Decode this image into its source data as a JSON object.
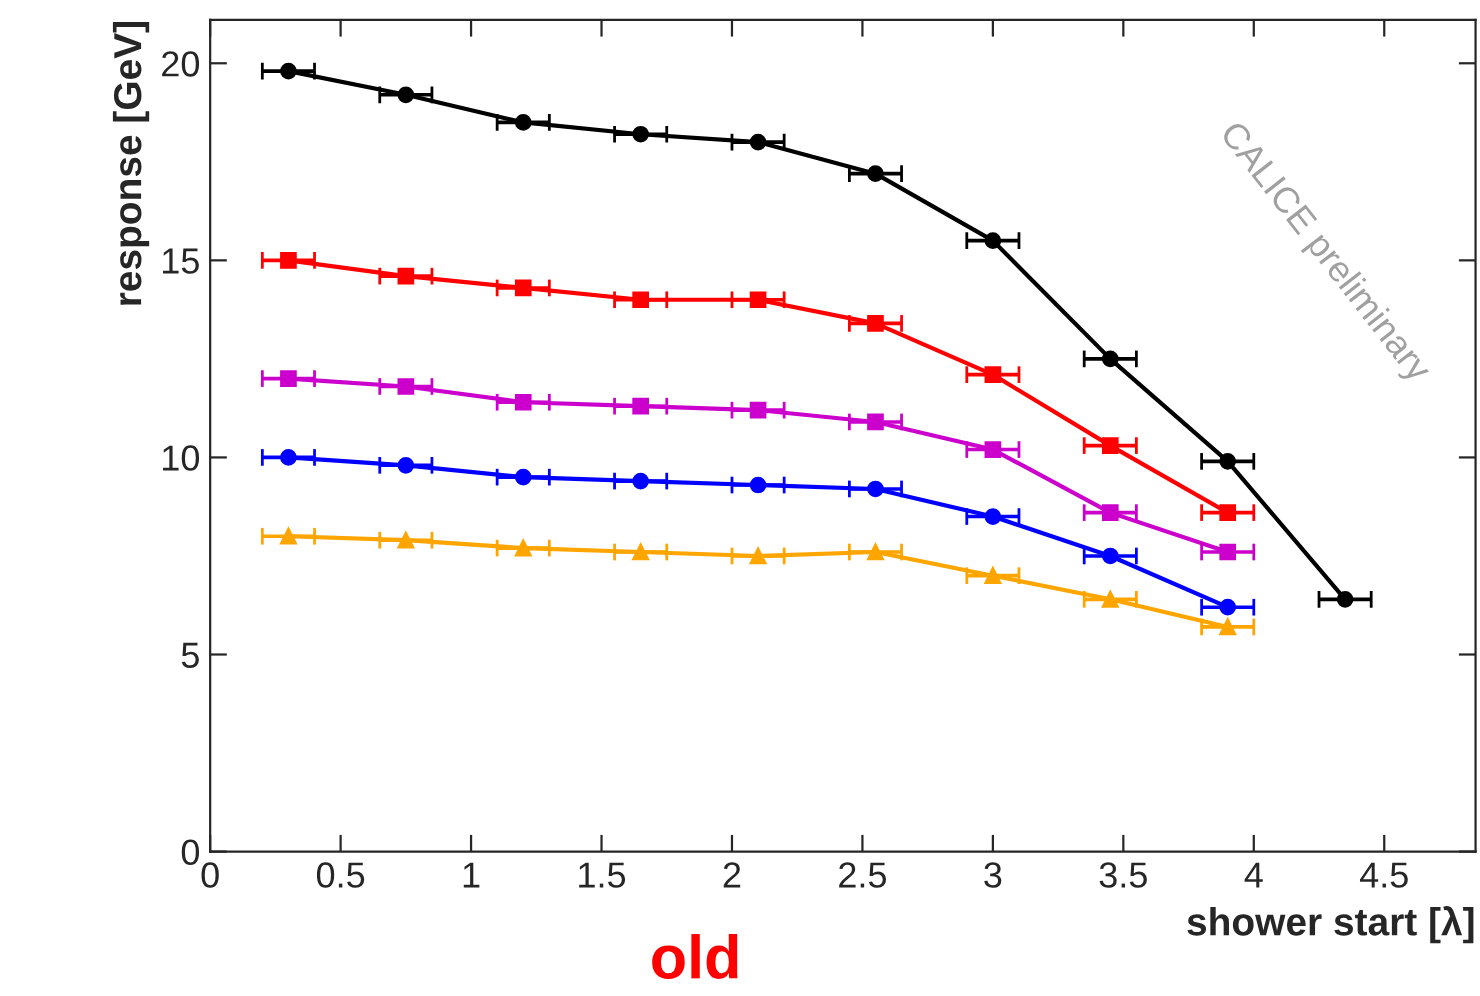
{
  "chart_data": {
    "type": "line",
    "xlabel": "shower start [λ]",
    "ylabel": "response [GeV]",
    "annotations": [
      "CALICE preliminary",
      "old"
    ],
    "xlim": [
      0,
      4.85
    ],
    "ylim": [
      0,
      21.1
    ],
    "xticks": [
      0,
      0.5,
      1,
      1.5,
      2,
      2.5,
      3,
      3.5,
      4,
      4.5
    ],
    "yticks": [
      0,
      5,
      10,
      15,
      20
    ],
    "grid": false,
    "line_style": "solid",
    "x": [
      0.3,
      0.75,
      1.2,
      1.65,
      2.1,
      2.55,
      3.0,
      3.45,
      3.9,
      4.35
    ],
    "series": [
      {
        "color": "#000000",
        "marker": "circle",
        "values": [
          19.8,
          19.2,
          18.5,
          18.2,
          18.0,
          17.2,
          15.5,
          12.5,
          9.9,
          6.4
        ],
        "xerrors": [
          0.1,
          0.1,
          0.1,
          0.1,
          0.1,
          0.1,
          0.1,
          0.1,
          0.1,
          0.1
        ]
      },
      {
        "color": "#ff0000",
        "marker": "square",
        "values": [
          15.0,
          14.6,
          14.3,
          14.0,
          14.0,
          13.4,
          12.1,
          10.3,
          8.6,
          null
        ],
        "xerrors": [
          0.1,
          0.1,
          0.1,
          0.1,
          0.1,
          0.1,
          0.1,
          0.1,
          0.1,
          null
        ]
      },
      {
        "color": "#cc00cc",
        "marker": "square",
        "values": [
          12.0,
          11.8,
          11.4,
          11.3,
          11.2,
          10.9,
          10.2,
          8.6,
          7.6,
          null
        ],
        "xerrors": [
          0.1,
          0.1,
          0.1,
          0.1,
          0.1,
          0.1,
          0.1,
          0.1,
          0.1,
          null
        ]
      },
      {
        "color": "#0000ff",
        "marker": "circle",
        "values": [
          10.0,
          9.8,
          9.5,
          9.4,
          9.3,
          9.2,
          8.5,
          7.5,
          6.2,
          null
        ],
        "xerrors": [
          0.1,
          0.1,
          0.1,
          0.1,
          0.1,
          0.1,
          0.1,
          0.1,
          0.1,
          null
        ]
      },
      {
        "color": "#ffa500",
        "marker": "triangle",
        "values": [
          8.0,
          7.9,
          7.7,
          7.6,
          7.5,
          7.6,
          7.0,
          6.4,
          5.7,
          null
        ],
        "xerrors": [
          0.1,
          0.1,
          0.1,
          0.1,
          0.1,
          0.1,
          0.1,
          0.1,
          0.1,
          null
        ]
      }
    ]
  }
}
